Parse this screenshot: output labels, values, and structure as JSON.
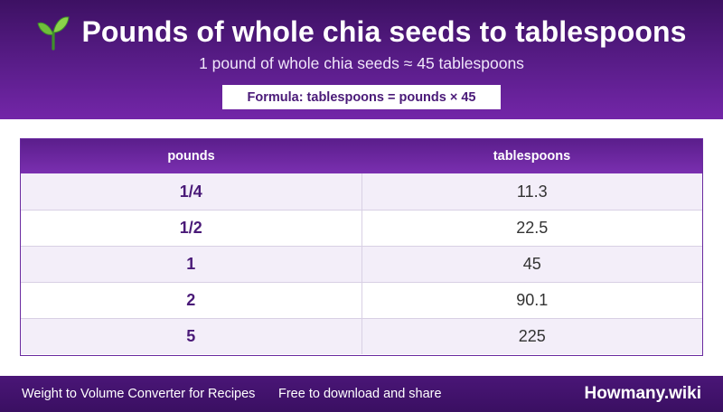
{
  "header": {
    "icon": "sprout-icon",
    "title": "Pounds of whole chia seeds to tablespoons",
    "subtitle": "1 pound of whole chia seeds ≈ 45 tablespoons",
    "formula": "Formula: tablespoons = pounds × 45"
  },
  "table": {
    "columns": [
      "pounds",
      "tablespoons"
    ],
    "rows": [
      {
        "pounds": "1/4",
        "tablespoons": "11.3"
      },
      {
        "pounds": "1/2",
        "tablespoons": "22.5"
      },
      {
        "pounds": "1",
        "tablespoons": "45"
      },
      {
        "pounds": "2",
        "tablespoons": "90.1"
      },
      {
        "pounds": "5",
        "tablespoons": "225"
      }
    ]
  },
  "footer": {
    "left_text": "Weight to Volume Converter for Recipes",
    "mid_text": "Free to download and share",
    "brand": "Howmany.wiki"
  },
  "colors": {
    "brand_purple": "#5a1d8a",
    "accent_text": "#4a1a78"
  }
}
